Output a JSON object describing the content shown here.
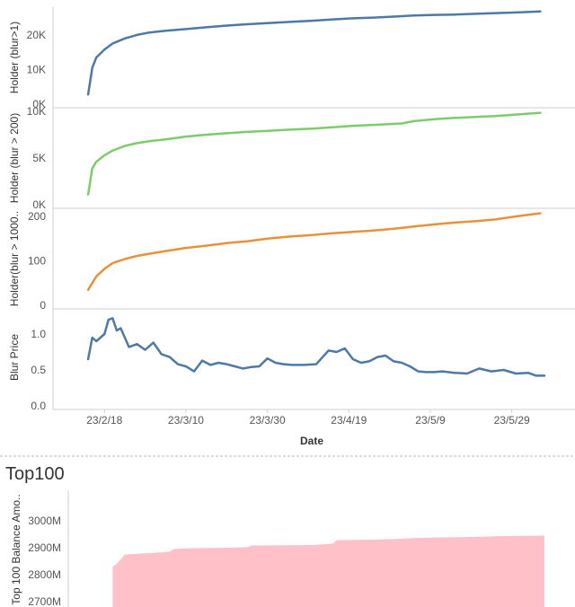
{
  "colors": {
    "blue": "#4e79a7",
    "green": "#7ccd6a",
    "orange": "#e8913a",
    "pink_fill": "#ffc0c8"
  },
  "x_axis": {
    "label": "Date",
    "ticks": [
      "23/2/18",
      "23/3/10",
      "23/3/30",
      "23/4/19",
      "23/5/9",
      "23/5/29"
    ],
    "range": [
      "2023-02-10",
      "2023-06-08"
    ]
  },
  "chart_data": [
    {
      "type": "line",
      "ylabel": "Holder (blur>1)",
      "y_ticks": [
        "0K",
        "10K",
        "20K"
      ],
      "ylim": [
        0,
        27500
      ],
      "color": "blue",
      "x": [
        "2023-02-14",
        "2023-02-15",
        "2023-02-16",
        "2023-02-18",
        "2023-02-20",
        "2023-02-23",
        "2023-02-26",
        "2023-03-01",
        "2023-03-05",
        "2023-03-10",
        "2023-03-15",
        "2023-03-20",
        "2023-03-25",
        "2023-03-30",
        "2023-04-05",
        "2023-04-10",
        "2023-04-15",
        "2023-04-20",
        "2023-04-25",
        "2023-04-30",
        "2023-05-05",
        "2023-05-10",
        "2023-05-15",
        "2023-05-20",
        "2023-05-25",
        "2023-05-30",
        "2023-06-05"
      ],
      "values": [
        2800,
        10500,
        13500,
        15800,
        17500,
        19000,
        20000,
        20700,
        21200,
        21700,
        22200,
        22700,
        23100,
        23400,
        23800,
        24100,
        24500,
        24800,
        25000,
        25300,
        25600,
        25800,
        25900,
        26100,
        26300,
        26500,
        26800
      ]
    },
    {
      "type": "line",
      "ylabel": "Holder (blur > 200)",
      "y_ticks": [
        "0K",
        "5K",
        "10K"
      ],
      "ylim": [
        0,
        10000
      ],
      "color": "green",
      "x": [
        "2023-02-14",
        "2023-02-15",
        "2023-02-16",
        "2023-02-18",
        "2023-02-20",
        "2023-02-23",
        "2023-02-26",
        "2023-03-01",
        "2023-03-05",
        "2023-03-10",
        "2023-03-15",
        "2023-03-20",
        "2023-03-25",
        "2023-03-30",
        "2023-04-05",
        "2023-04-10",
        "2023-04-15",
        "2023-04-20",
        "2023-04-25",
        "2023-04-30",
        "2023-05-02",
        "2023-05-05",
        "2023-05-10",
        "2023-05-15",
        "2023-05-20",
        "2023-05-25",
        "2023-05-30",
        "2023-06-05"
      ],
      "values": [
        1100,
        3900,
        4600,
        5300,
        5800,
        6300,
        6600,
        6800,
        7000,
        7300,
        7500,
        7650,
        7800,
        7900,
        8050,
        8150,
        8300,
        8450,
        8550,
        8650,
        8700,
        8950,
        9150,
        9300,
        9400,
        9500,
        9650,
        9850
      ]
    },
    {
      "type": "line",
      "ylabel": "Holder(blur > 1000..",
      "y_ticks": [
        "0",
        "100",
        "200"
      ],
      "ylim": [
        0,
        210
      ],
      "color": "orange",
      "x": [
        "2023-02-14",
        "2023-02-15",
        "2023-02-16",
        "2023-02-18",
        "2023-02-20",
        "2023-02-23",
        "2023-02-26",
        "2023-03-01",
        "2023-03-05",
        "2023-03-10",
        "2023-03-15",
        "2023-03-20",
        "2023-03-25",
        "2023-03-30",
        "2023-04-05",
        "2023-04-10",
        "2023-04-15",
        "2023-04-20",
        "2023-04-25",
        "2023-04-30",
        "2023-05-05",
        "2023-05-10",
        "2023-05-15",
        "2023-05-20",
        "2023-05-25",
        "2023-05-30",
        "2023-06-05"
      ],
      "values": [
        35,
        50,
        65,
        82,
        95,
        104,
        111,
        116,
        122,
        129,
        134,
        140,
        144,
        150,
        155,
        158,
        162,
        165,
        168,
        172,
        177,
        182,
        186,
        189,
        193,
        200,
        207
      ]
    },
    {
      "type": "line",
      "ylabel": "Blur Price",
      "y_ticks": [
        "0.0",
        "0.5",
        "1.0"
      ],
      "ylim": [
        0,
        1.3
      ],
      "color": "blue",
      "x": [
        "2023-02-14",
        "2023-02-15",
        "2023-02-16",
        "2023-02-18",
        "2023-02-19",
        "2023-02-20",
        "2023-02-21",
        "2023-02-22",
        "2023-02-24",
        "2023-02-26",
        "2023-02-28",
        "2023-03-02",
        "2023-03-04",
        "2023-03-06",
        "2023-03-08",
        "2023-03-10",
        "2023-03-12",
        "2023-03-14",
        "2023-03-16",
        "2023-03-18",
        "2023-03-20",
        "2023-03-22",
        "2023-03-24",
        "2023-03-26",
        "2023-03-28",
        "2023-03-30",
        "2023-04-01",
        "2023-04-03",
        "2023-04-05",
        "2023-04-08",
        "2023-04-11",
        "2023-04-14",
        "2023-04-16",
        "2023-04-18",
        "2023-04-20",
        "2023-04-22",
        "2023-04-24",
        "2023-04-26",
        "2023-04-28",
        "2023-04-30",
        "2023-05-02",
        "2023-05-04",
        "2023-05-06",
        "2023-05-08",
        "2023-05-10",
        "2023-05-12",
        "2023-05-15",
        "2023-05-18",
        "2023-05-21",
        "2023-05-24",
        "2023-05-27",
        "2023-05-30",
        "2023-06-02",
        "2023-06-04",
        "2023-06-06"
      ],
      "values": [
        0.65,
        0.95,
        0.9,
        1.0,
        1.2,
        1.22,
        1.05,
        1.08,
        0.82,
        0.86,
        0.78,
        0.88,
        0.72,
        0.68,
        0.58,
        0.55,
        0.48,
        0.63,
        0.57,
        0.6,
        0.58,
        0.55,
        0.52,
        0.54,
        0.55,
        0.66,
        0.6,
        0.58,
        0.57,
        0.57,
        0.58,
        0.77,
        0.75,
        0.8,
        0.65,
        0.6,
        0.62,
        0.68,
        0.7,
        0.62,
        0.6,
        0.55,
        0.48,
        0.47,
        0.47,
        0.48,
        0.46,
        0.45,
        0.52,
        0.48,
        0.5,
        0.45,
        0.46,
        0.42,
        0.42
      ]
    },
    {
      "type": "area",
      "title": "Top100",
      "ylabel": "Top 100 Balance Amo..",
      "y_ticks": [
        "2700M",
        "2800M",
        "2900M",
        "3000M"
      ],
      "ylim": [
        2680,
        3080
      ],
      "color": "pink_fill",
      "x": [
        "2023-02-20",
        "2023-02-21",
        "2023-02-23",
        "2023-03-01",
        "2023-03-06",
        "2023-03-07",
        "2023-03-10",
        "2023-03-20",
        "2023-03-25",
        "2023-03-26",
        "2023-04-10",
        "2023-04-15",
        "2023-04-16",
        "2023-04-25",
        "2023-04-30",
        "2023-05-05",
        "2023-05-10",
        "2023-05-20",
        "2023-05-25",
        "2023-06-06"
      ],
      "values": [
        2830,
        2840,
        2875,
        2880,
        2885,
        2895,
        2898,
        2900,
        2902,
        2908,
        2910,
        2915,
        2928,
        2930,
        2932,
        2936,
        2938,
        2940,
        2943,
        2945
      ]
    }
  ]
}
